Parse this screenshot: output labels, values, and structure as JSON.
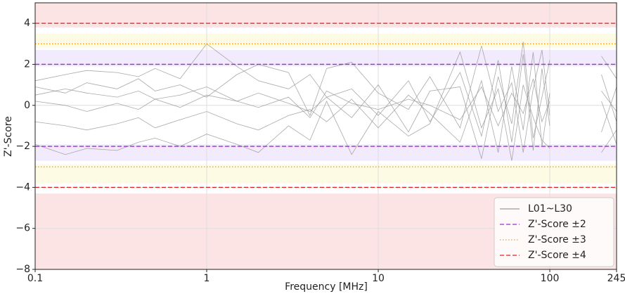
{
  "chart_data": {
    "type": "line",
    "xlabel": "Frequency [MHz]",
    "ylabel": "Z'-Score",
    "xscale": "log",
    "x": [
      0.1,
      0.15,
      0.2,
      0.3,
      0.4,
      0.5,
      0.7,
      1,
      1.5,
      2,
      3,
      4,
      5,
      7,
      10,
      15,
      20,
      30,
      40,
      50,
      60,
      70,
      80,
      90,
      100,
      120,
      150,
      200,
      245
    ],
    "series": [
      {
        "name": "L01~L30",
        "color": "#9a9a9a",
        "lines": [
          [
            0.5,
            0.8,
            0.6,
            0.4,
            0.7,
            0.3,
            0.5,
            0.9,
            0.2,
            0.6,
            0.1,
            -0.3,
            0.4,
            0.8,
            -0.5,
            1.2,
            -0.8,
            1.6,
            -1.5,
            2.2,
            -1.8,
            2.5,
            -2.2,
            1.8,
            -1.0,
            null,
            null,
            1.5,
            -0.8
          ],
          [
            -0.8,
            -1.0,
            -1.2,
            -0.9,
            -0.6,
            -1.1,
            -0.7,
            -0.3,
            -0.9,
            -1.2,
            -0.5,
            -0.2,
            -0.8,
            0.3,
            -1.1,
            0.5,
            -0.4,
            -1.8,
            1.2,
            -2.3,
            1.9,
            -1.2,
            2.6,
            -2.0,
            0.6,
            null,
            null,
            -1.3,
            0.9
          ],
          [
            1.2,
            1.5,
            1.7,
            1.6,
            1.4,
            1.8,
            1.3,
            3.0,
            1.9,
            1.2,
            0.8,
            1.5,
            0.4,
            -0.6,
            1.0,
            -1.3,
            0.7,
            0.9,
            -2.6,
            1.4,
            -0.9,
            3.1,
            -1.6,
            0.4,
            2.2,
            null,
            null,
            0.2,
            -1.9
          ],
          [
            -1.9,
            -2.4,
            -2.1,
            -2.2,
            -1.8,
            -1.6,
            -2.0,
            -1.4,
            -1.9,
            -2.3,
            -1.0,
            -1.7,
            0.2,
            -2.4,
            -0.3,
            -1.5,
            -0.9,
            2.6,
            -1.1,
            0.8,
            -2.7,
            1.0,
            -0.6,
            -1.7,
            -2.1,
            null,
            null,
            -2.3,
            -1.2
          ],
          [
            0.2,
            0.0,
            -0.3,
            0.1,
            -0.2,
            0.3,
            -0.1,
            0.5,
            0.2,
            -0.1,
            0.4,
            -0.6,
            0.7,
            0.1,
            -0.2,
            0.3,
            0.0,
            -0.7,
            0.9,
            -1.0,
            0.6,
            -0.4,
            1.3,
            -0.8,
            0.2,
            null,
            null,
            0.7,
            -0.3
          ],
          [
            0.9,
            0.6,
            1.1,
            0.8,
            1.3,
            0.7,
            1.0,
            0.4,
            1.5,
            2.0,
            1.6,
            -0.5,
            1.8,
            2.1,
            0.6,
            -0.2,
            1.4,
            -1.1,
            2.9,
            -0.3,
            1.1,
            -2.3,
            0.8,
            2.7,
            -0.5,
            null,
            null,
            2.4,
            1.3
          ]
        ]
      }
    ],
    "hlines": [
      {
        "name": "Z'-Score ±2",
        "values": [
          2,
          -2
        ],
        "color": "#9b30d0",
        "dash": "dashed"
      },
      {
        "name": "Z'-Score ±3",
        "values": [
          3,
          -3
        ],
        "color": "#f0a020",
        "dash": "dotted"
      },
      {
        "name": "Z'-Score ±4",
        "values": [
          4,
          -4
        ],
        "color": "#e02020",
        "dash": "dashed"
      }
    ],
    "bands": [
      {
        "from": 3.8,
        "to": 5,
        "color": "#fde4e4"
      },
      {
        "from": 2.8,
        "to": 3.5,
        "color": "#fdfbe4"
      },
      {
        "from": 1.9,
        "to": 2.7,
        "color": "#f2eafd"
      },
      {
        "from": -2.7,
        "to": -1.9,
        "color": "#f2eafd"
      },
      {
        "from": -3.8,
        "to": -2.9,
        "color": "#fdfbe4"
      },
      {
        "from": -8,
        "to": -4.3,
        "color": "#fde4e4"
      }
    ],
    "xlim": [
      0.1,
      245
    ],
    "ylim": [
      -8,
      5
    ],
    "xticks": [
      0.1,
      1,
      10,
      100,
      245
    ],
    "yticks": [
      {
        "value": -8,
        "label": "−8"
      },
      {
        "value": -6,
        "label": "−6"
      },
      {
        "value": -4,
        "label": "−4"
      },
      {
        "value": -2,
        "label": "−2"
      },
      0,
      2,
      4
    ],
    "grid": true,
    "legend": "lower right"
  }
}
